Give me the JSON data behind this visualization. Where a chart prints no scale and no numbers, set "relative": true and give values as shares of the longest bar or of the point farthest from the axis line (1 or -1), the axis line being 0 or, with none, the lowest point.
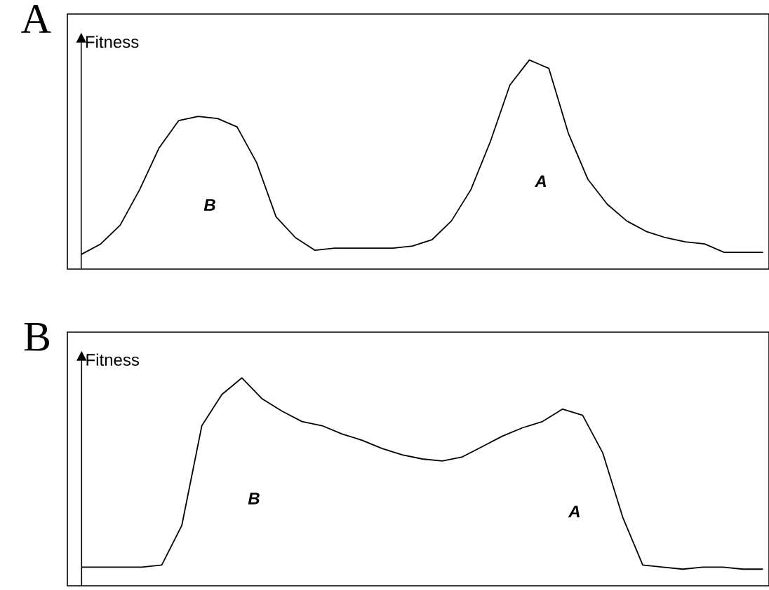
{
  "chart_data": [
    {
      "type": "line",
      "title": "A",
      "ylabel": "Fitness",
      "relative": true,
      "color": "#000000",
      "marker": "none",
      "categories": [
        null,
        null,
        null,
        null,
        null,
        null,
        null,
        null,
        null,
        null,
        null,
        null,
        null,
        null,
        null,
        null,
        null,
        null,
        null,
        null,
        null,
        null,
        null,
        null,
        null,
        null,
        null,
        null,
        null,
        null,
        null,
        null,
        null,
        null,
        null,
        null
      ],
      "values": [
        0.07,
        0.12,
        0.21,
        0.38,
        0.58,
        0.71,
        0.73,
        0.72,
        0.68,
        0.51,
        0.25,
        0.15,
        0.09,
        0.1,
        0.1,
        0.1,
        0.1,
        0.11,
        0.14,
        0.23,
        0.38,
        0.61,
        0.88,
        1,
        0.96,
        0.65,
        0.43,
        0.31,
        0.23,
        0.18,
        0.15,
        0.13,
        0.12,
        0.08,
        0.08,
        0.08
      ],
      "annotations": [
        "B",
        "A"
      ]
    },
    {
      "type": "line",
      "title": "B",
      "ylabel": "Fitness",
      "relative": true,
      "color": "#000000",
      "marker": "none",
      "categories": [
        null,
        null,
        null,
        null,
        null,
        null,
        null,
        null,
        null,
        null,
        null,
        null,
        null,
        null,
        null,
        null,
        null,
        null,
        null,
        null,
        null,
        null,
        null,
        null,
        null,
        null,
        null,
        null,
        null,
        null,
        null,
        null,
        null,
        null,
        null
      ],
      "values": [
        0.09,
        0.09,
        0.09,
        0.09,
        0.1,
        0.29,
        0.77,
        0.92,
        1,
        0.9,
        0.84,
        0.79,
        0.77,
        0.73,
        0.7,
        0.66,
        0.63,
        0.61,
        0.6,
        0.62,
        0.67,
        0.72,
        0.76,
        0.79,
        0.85,
        0.82,
        0.64,
        0.33,
        0.1,
        0.09,
        0.08,
        0.09,
        0.09,
        0.08,
        0.08
      ],
      "annotations": [
        "B",
        "A"
      ]
    }
  ]
}
